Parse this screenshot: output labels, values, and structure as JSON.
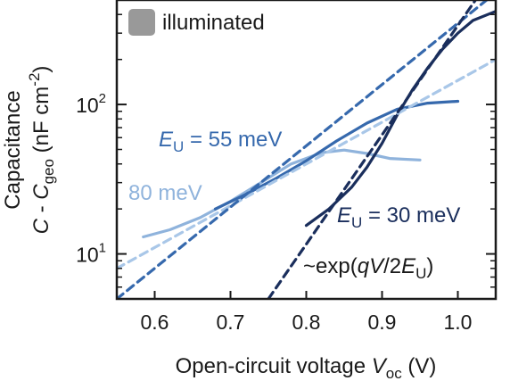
{
  "chart_data": {
    "type": "line",
    "title": "",
    "xlabel": "Open-circuit voltage V_oc (V)",
    "ylabel": "Capacitance C - C_geo (nF cm^-2)",
    "xlabel_parts": {
      "main": "Open-circuit voltage ",
      "var": "V",
      "sub": "oc",
      "unit": " (V)"
    },
    "ylabel_parts": {
      "line1": "Capacitance",
      "var1": "C",
      "mid": " - ",
      "var2": "C",
      "sub": "geo",
      "unit_pre": " (nF cm",
      "sup": "-2",
      "unit_post": ")"
    },
    "xlim": [
      0.55,
      1.05
    ],
    "ylim": [
      5,
      500
    ],
    "yscale": "log",
    "grid": false,
    "x_ticks": [
      0.6,
      0.7,
      0.8,
      0.9,
      1.0
    ],
    "x_tick_labels": [
      "0.6",
      "0.7",
      "0.8",
      "0.9",
      "1.0"
    ],
    "y_ticks": [
      10,
      100
    ],
    "y_tick_labels": [
      {
        "base": "10",
        "exp": "1"
      },
      {
        "base": "10",
        "exp": "2"
      }
    ],
    "legend": {
      "label": "illuminated",
      "color": "#999999",
      "position": "top-left"
    },
    "series": [
      {
        "style": "solid",
        "color": "#8fb3dc",
        "x": [
          0.585,
          0.62,
          0.66,
          0.7,
          0.74,
          0.78,
          0.82,
          0.85,
          0.88,
          0.91,
          0.95
        ],
        "y": [
          13.0,
          14.5,
          17.5,
          22.5,
          30.0,
          40.0,
          47.5,
          49.5,
          47.0,
          43.5,
          42.5
        ]
      },
      {
        "style": "solid",
        "color": "#3669ad",
        "x": [
          0.68,
          0.72,
          0.76,
          0.8,
          0.84,
          0.88,
          0.92,
          0.96,
          1.0
        ],
        "y": [
          20.0,
          25.0,
          32.0,
          42.0,
          57.0,
          75.0,
          93.0,
          102.0,
          105.0
        ]
      },
      {
        "style": "solid",
        "color": "#1a2e5c",
        "x": [
          0.8,
          0.83,
          0.86,
          0.88,
          0.9,
          0.92,
          0.94,
          0.96,
          0.98,
          1.0,
          1.02,
          1.05
        ],
        "y": [
          15.5,
          20.0,
          28.0,
          38.0,
          55.0,
          85.0,
          125.0,
          175.0,
          235.0,
          300.0,
          365.0,
          420.0
        ]
      },
      {
        "style": "dashed",
        "color": "#a9c7e8",
        "x": [
          0.55,
          1.05
        ],
        "y": [
          8.0,
          200.0
        ]
      },
      {
        "style": "dashed",
        "color": "#3669ad",
        "x": [
          0.55,
          1.05
        ],
        "y": [
          5.0,
          560.0
        ]
      },
      {
        "style": "dashed",
        "color": "#1a2e5c",
        "x": [
          0.75,
          1.03
        ],
        "y": [
          5.0,
          560.0
        ]
      }
    ],
    "annotations": [
      {
        "kind": "eu",
        "prefix": "E",
        "sub": "U",
        "suffix": " = 55 meV",
        "color": "#3669ad"
      },
      {
        "kind": "plain",
        "text": "80 meV",
        "color": "#8fb3dc"
      },
      {
        "kind": "eu",
        "prefix": "E",
        "sub": "U",
        "suffix": " = 30 meV",
        "color": "#1a2e5c"
      },
      {
        "kind": "exp",
        "pre": "~exp(",
        "q": "q",
        "V": "V",
        "mid": "/2",
        "E": "E",
        "sub": "U",
        "post": ")",
        "color": "#1a1a1a"
      }
    ]
  }
}
